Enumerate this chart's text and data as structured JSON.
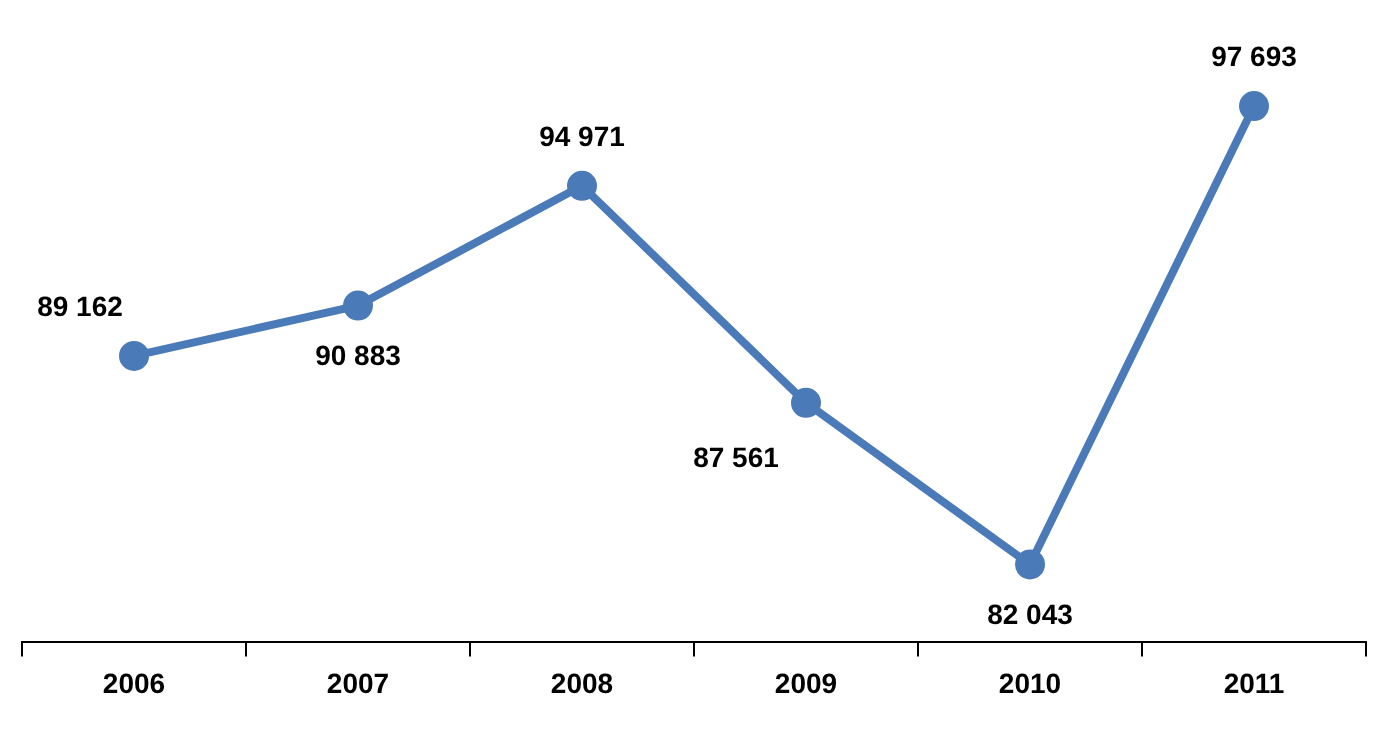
{
  "chart_data": {
    "type": "line",
    "categories": [
      "2006",
      "2007",
      "2008",
      "2009",
      "2010",
      "2011"
    ],
    "series": [
      {
        "color": "#4a7ab8",
        "values": [
          89162,
          90883,
          94971,
          87561,
          82043,
          97693
        ],
        "value_labels": [
          "89 162",
          "90 883",
          "94 971",
          "87 561",
          "82 043",
          "97 693"
        ]
      }
    ],
    "marker": "circle",
    "legend": false,
    "grid": false
  }
}
